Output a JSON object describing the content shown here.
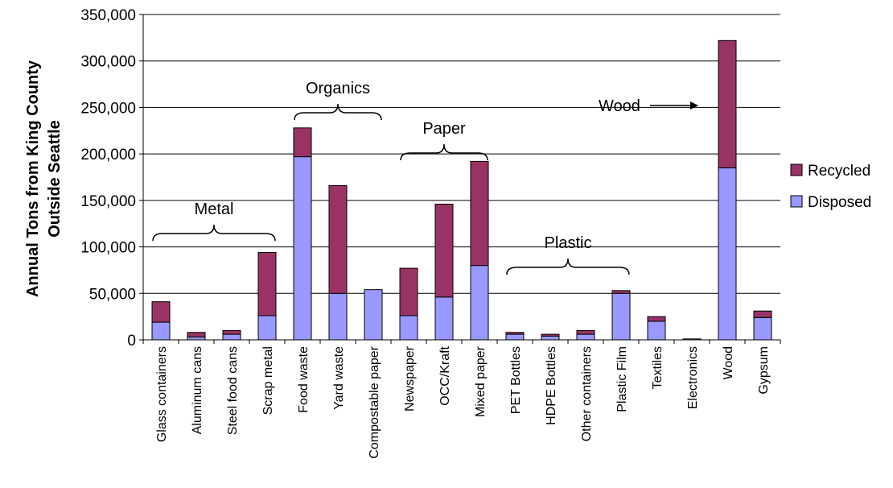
{
  "chart_data": {
    "type": "bar",
    "stacked": true,
    "ylabel": [
      "Annual Tons from King County",
      "Outside Seattle"
    ],
    "ylim": [
      0,
      350000
    ],
    "yticks": [
      "0",
      "50,000",
      "100,000",
      "150,000",
      "200,000",
      "250,000",
      "300,000",
      "350,000"
    ],
    "categories": [
      "Glass containers",
      "Aluminum cans",
      "Steel food cans",
      "Scrap metal",
      "Food waste",
      "Yard waste",
      "Compostable paper",
      "Newspaper",
      "OCC/Kraft",
      "Mixed paper",
      "PET Bottles",
      "HDPE Bottles",
      "Other containers",
      "Plastic Film",
      "Textiles",
      "Electronics",
      "Wood",
      "Gypsum"
    ],
    "series": [
      {
        "name": "Disposed",
        "color": "#9999ff",
        "values": [
          19000,
          3000,
          6000,
          26000,
          197000,
          50000,
          54000,
          26000,
          46000,
          80000,
          6000,
          4000,
          6000,
          50000,
          20000,
          1000,
          185000,
          24000
        ]
      },
      {
        "name": "Recycled",
        "color": "#993366",
        "values": [
          22000,
          5000,
          4000,
          68000,
          31000,
          116000,
          0,
          51000,
          100000,
          112000,
          2000,
          2000,
          4000,
          3000,
          5000,
          0,
          137000,
          7000
        ]
      }
    ],
    "grid": true,
    "legend": "right",
    "annotations": [
      {
        "text": "Metal",
        "from": 0,
        "to": 3
      },
      {
        "text": "Organics",
        "from": 4,
        "to": 6
      },
      {
        "text": "Paper",
        "from": 7,
        "to": 9
      },
      {
        "text": "Plastic",
        "from": 10,
        "to": 13
      },
      {
        "text": "Wood",
        "arrow": true,
        "to": 16
      }
    ]
  }
}
